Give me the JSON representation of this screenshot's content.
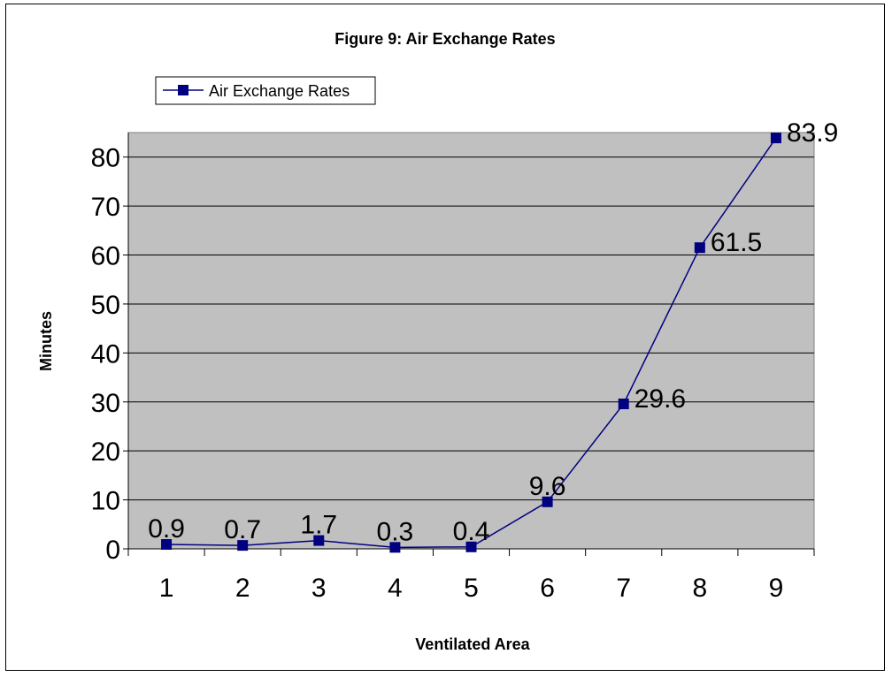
{
  "chart_data": {
    "type": "line",
    "title": "Figure 9: Air Exchange Rates",
    "xlabel": "Ventilated Area",
    "ylabel": "Minutes",
    "categories": [
      "1",
      "2",
      "3",
      "4",
      "5",
      "6",
      "7",
      "8",
      "9"
    ],
    "series": [
      {
        "name": "Air Exchange Rates",
        "values": [
          0.9,
          0.7,
          1.7,
          0.3,
          0.4,
          9.6,
          29.6,
          61.5,
          83.9
        ],
        "data_labels": [
          "0.9",
          "0.7",
          "1.7",
          "0.3",
          "0.4",
          "9.6",
          "29.6",
          "61.5",
          "83.9"
        ],
        "color": "#000080",
        "marker": "square"
      }
    ],
    "ylim": [
      0,
      85
    ],
    "yticks": [
      0,
      10,
      20,
      30,
      40,
      50,
      60,
      70,
      80
    ],
    "ytick_labels": [
      "0",
      "10",
      "20",
      "30",
      "40",
      "50",
      "60",
      "70",
      "80"
    ],
    "grid": true,
    "legend_position": "top-left",
    "plot_background": "#c0c0c0",
    "gridline_color": "#000000"
  }
}
